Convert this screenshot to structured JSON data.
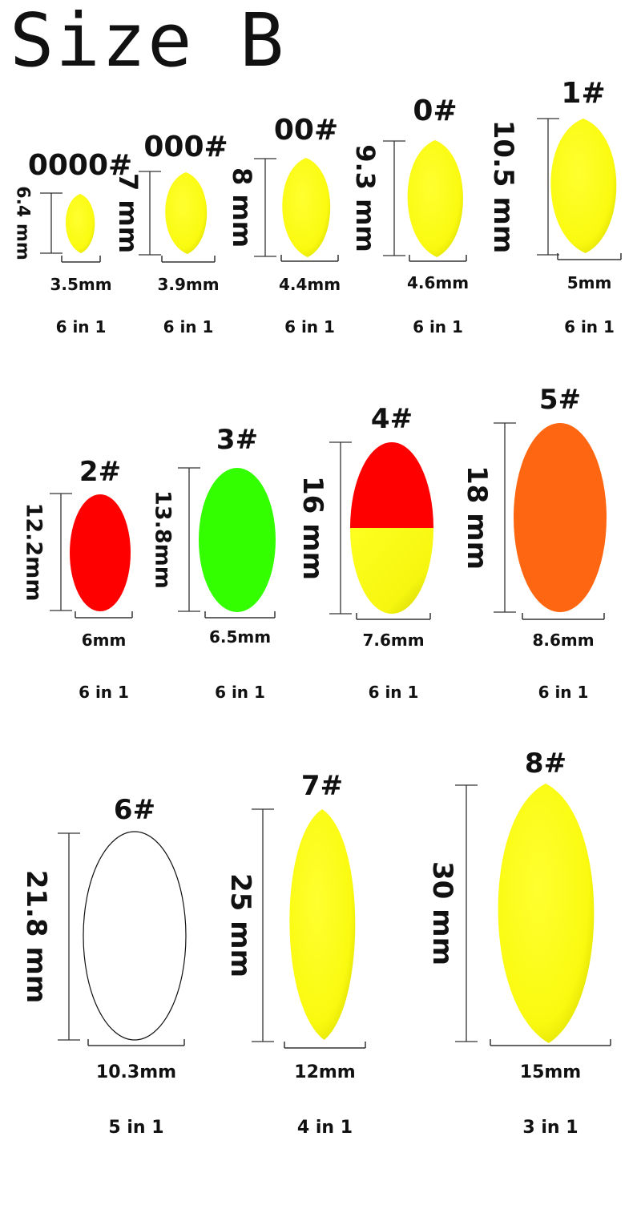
{
  "title": "Size B",
  "colors": {
    "yellow": "#ffff1a",
    "red": "#ff0000",
    "green": "#33ff00",
    "orange": "#ff6611",
    "white": "#ffffff",
    "rule": "#333333"
  },
  "floats": [
    {
      "id": "f0000",
      "number": "0000#",
      "height": "6.4 mm",
      "width": "3.5mm",
      "pack": "6 in 1",
      "color": "yellow"
    },
    {
      "id": "f000",
      "number": "000#",
      "height": "7 mm",
      "width": "3.9mm",
      "pack": "6 in 1",
      "color": "yellow"
    },
    {
      "id": "f00",
      "number": "00#",
      "height": "8 mm",
      "width": "4.4mm",
      "pack": "6 in 1",
      "color": "yellow"
    },
    {
      "id": "f0",
      "number": "0#",
      "height": "9.3 mm",
      "width": "4.6mm",
      "pack": "6 in 1",
      "color": "yellow"
    },
    {
      "id": "f1",
      "number": "1#",
      "height": "10.5 mm",
      "width": "5mm",
      "pack": "6 in 1",
      "color": "yellow"
    },
    {
      "id": "f2",
      "number": "2#",
      "height": "12.2mm",
      "width": "6mm",
      "pack": "6 in 1",
      "color": "red"
    },
    {
      "id": "f3",
      "number": "3#",
      "height": "13.8mm",
      "width": "6.5mm",
      "pack": "6 in 1",
      "color": "green"
    },
    {
      "id": "f4",
      "number": "4#",
      "height": "16 mm",
      "width": "7.6mm",
      "pack": "6 in 1",
      "color": "red/yellow"
    },
    {
      "id": "f5",
      "number": "5#",
      "height": "18 mm",
      "width": "8.6mm",
      "pack": "6 in 1",
      "color": "orange"
    },
    {
      "id": "f6",
      "number": "6#",
      "height": "21.8 mm",
      "width": "10.3mm",
      "pack": "5 in 1",
      "color": "white"
    },
    {
      "id": "f7",
      "number": "7#",
      "height": "25 mm",
      "width": "12mm",
      "pack": "4 in 1",
      "color": "yellow"
    },
    {
      "id": "f8",
      "number": "8#",
      "height": "30 mm",
      "width": "15mm",
      "pack": "3 in 1",
      "color": "yellow"
    }
  ]
}
